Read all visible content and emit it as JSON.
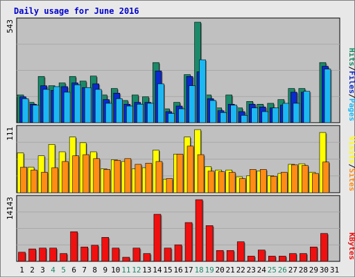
{
  "title": "Daily usage for June 2016",
  "colors": {
    "hits": "#1a8a68",
    "files": "#0a2acc",
    "pages": "#1cb8f4",
    "visits": "#ffff00",
    "sites": "#ff8c14",
    "kbytes": "#f01010",
    "panel_bg": "#c0c0c0",
    "frame_bg": "#e8e8e8",
    "weekend_label": "#1a8a68",
    "weekday_label": "#000000"
  },
  "chart_data": [
    {
      "type": "bar",
      "panel": "hits-files-pages",
      "max_label": "543",
      "right_labels": [
        "Pages",
        "Files",
        "Hits"
      ],
      "ylim": [
        0,
        543
      ],
      "categories": [
        "1",
        "2",
        "3",
        "4",
        "5",
        "6",
        "7",
        "8",
        "9",
        "10",
        "11",
        "12",
        "13",
        "14",
        "15",
        "16",
        "17",
        "18",
        "19",
        "20",
        "21",
        "22",
        "23",
        "24",
        "25",
        "26",
        "27",
        "28",
        "29",
        "30",
        "31"
      ],
      "weekend_days": [
        "4",
        "5",
        "11",
        "12",
        "18",
        "19",
        "25",
        "26"
      ],
      "series": [
        {
          "name": "Hits",
          "values": [
            150,
            110,
            250,
            200,
            215,
            250,
            225,
            252,
            150,
            185,
            120,
            150,
            140,
            325,
            75,
            110,
            260,
            543,
            150,
            80,
            150,
            80,
            115,
            100,
            105,
            125,
            185,
            185,
            0,
            325,
            0
          ]
        },
        {
          "name": "Files",
          "values": [
            140,
            100,
            200,
            175,
            195,
            215,
            190,
            210,
            125,
            160,
            100,
            110,
            110,
            280,
            60,
            90,
            250,
            275,
            130,
            65,
            100,
            60,
            100,
            85,
            80,
            95,
            165,
            165,
            0,
            305,
            0
          ]
        },
        {
          "name": "Pages",
          "values": [
            130,
            95,
            180,
            195,
            165,
            205,
            190,
            180,
            105,
            130,
            90,
            100,
            105,
            210,
            50,
            75,
            200,
            340,
            120,
            55,
            95,
            40,
            80,
            60,
            80,
            105,
            105,
            170,
            0,
            290,
            0
          ]
        }
      ]
    },
    {
      "type": "bar",
      "panel": "visits-sites",
      "max_label": "111",
      "right_labels": [
        "Sites",
        "Visits"
      ],
      "ylim": [
        0,
        111
      ],
      "categories": [
        "1",
        "2",
        "3",
        "4",
        "5",
        "6",
        "7",
        "8",
        "9",
        "10",
        "11",
        "12",
        "13",
        "14",
        "15",
        "16",
        "17",
        "18",
        "19",
        "20",
        "21",
        "22",
        "23",
        "24",
        "25",
        "26",
        "27",
        "28",
        "29",
        "30",
        "31"
      ],
      "series": [
        {
          "name": "Visits",
          "values": [
            70,
            45,
            65,
            85,
            72,
            98,
            88,
            72,
            42,
            58,
            55,
            42,
            44,
            75,
            24,
            68,
            98,
            111,
            46,
            40,
            40,
            28,
            30,
            38,
            30,
            34,
            50,
            51,
            36,
            106,
            0
          ]
        },
        {
          "name": "Sites",
          "values": [
            45,
            40,
            36,
            44,
            55,
            65,
            67,
            60,
            41,
            57,
            60,
            50,
            52,
            55,
            25,
            68,
            82,
            67,
            38,
            37,
            36,
            25,
            41,
            41,
            29,
            36,
            49,
            48,
            34,
            54,
            0
          ]
        }
      ]
    },
    {
      "type": "bar",
      "panel": "kbytes",
      "max_label": "14143",
      "right_labels": [
        "KBytes"
      ],
      "ylim": [
        0,
        14143
      ],
      "categories": [
        "1",
        "2",
        "3",
        "4",
        "5",
        "6",
        "7",
        "8",
        "9",
        "10",
        "11",
        "12",
        "13",
        "14",
        "15",
        "16",
        "17",
        "18",
        "19",
        "20",
        "21",
        "22",
        "23",
        "24",
        "25",
        "26",
        "27",
        "28",
        "29",
        "30",
        "31"
      ],
      "series": [
        {
          "name": "KBytes",
          "values": [
            2100,
            2850,
            3050,
            3050,
            1800,
            6800,
            3300,
            3700,
            5500,
            3050,
            950,
            3050,
            1800,
            10800,
            3050,
            3800,
            8900,
            14143,
            8200,
            2500,
            2500,
            4500,
            1200,
            2600,
            1200,
            1200,
            1800,
            1800,
            3300,
            6400,
            0
          ]
        }
      ]
    }
  ]
}
